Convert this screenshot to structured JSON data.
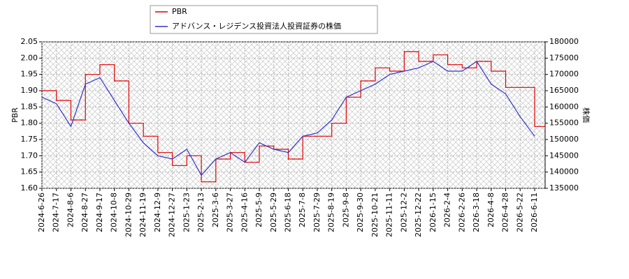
{
  "chart_data": {
    "type": "line",
    "y_label": "PBR",
    "y2_label": "株価",
    "categories": [
      "2024-6-26",
      "2024-7-17",
      "2024-8-6",
      "2024-8-27",
      "2024-9-17",
      "2024-10-8",
      "2024-10-29",
      "2024-11-19",
      "2024-12-9",
      "2024-12-27",
      "2025-1-23",
      "2025-2-13",
      "2025-3-6",
      "2025-3-27",
      "2025-4-16",
      "2025-5-9",
      "2025-5-29",
      "2025-6-18",
      "2025-7-8",
      "2025-7-29",
      "2025-8-19",
      "2025-9-8",
      "2025-9-30",
      "2025-10-21",
      "2025-11-11",
      "2025-12-2",
      "2025-12-22",
      "2026-1-15",
      "2026-2-4",
      "2026-2-26",
      "2026-3-18",
      "2026-4-8",
      "2026-4-28",
      "2026-5-22",
      "2026-6-11"
    ],
    "series": [
      {
        "name": "PBR",
        "color": "#dd0000",
        "step": true,
        "values": [
          1.9,
          1.87,
          1.81,
          1.95,
          1.98,
          1.93,
          1.8,
          1.76,
          1.71,
          1.67,
          1.7,
          1.62,
          1.69,
          1.71,
          1.68,
          1.73,
          1.72,
          1.69,
          1.76,
          1.76,
          1.8,
          1.88,
          1.93,
          1.97,
          1.96,
          2.02,
          1.99,
          2.01,
          1.98,
          1.97,
          1.99,
          1.96,
          1.91,
          1.91,
          1.79
        ]
      },
      {
        "name": "アドバンス・レジデンス投資法人投資証券の株価",
        "color": "#3333cc",
        "axis": "y2",
        "values": [
          163000,
          161000,
          154000,
          167000,
          169000,
          162000,
          155000,
          149000,
          145000,
          144000,
          147000,
          139000,
          144000,
          146000,
          143000,
          149000,
          147000,
          146000,
          151000,
          152000,
          156000,
          163000,
          165000,
          167000,
          170000,
          171000,
          172000,
          174000,
          171000,
          171000,
          174000,
          167000,
          164000,
          157000,
          151000
        ]
      }
    ],
    "ylim": [
      1.6,
      2.05
    ],
    "yticks": [
      {
        "value": 1.6,
        "label": "1.60"
      },
      1.65,
      {
        "value": 1.7,
        "label": "1.70"
      },
      1.75,
      {
        "value": 1.8,
        "label": "1.80"
      },
      1.85,
      {
        "value": 1.9,
        "label": "1.90"
      },
      1.95,
      {
        "value": 2.0,
        "label": "2.00"
      },
      2.05
    ],
    "y2lim": [
      135000,
      180000
    ],
    "y2ticks": [
      135000,
      140000,
      145000,
      150000,
      155000,
      160000,
      165000,
      170000,
      175000,
      180000
    ],
    "grid": true
  }
}
